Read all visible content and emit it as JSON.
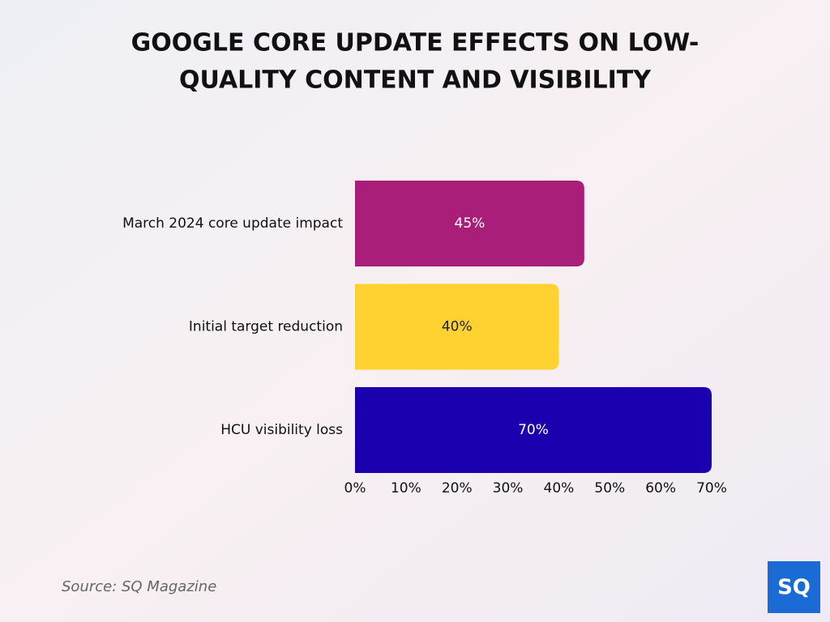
{
  "chart_data": {
    "type": "bar",
    "orientation": "horizontal",
    "title": [
      "GOOGLE CORE UPDATE EFFECTS ON LOW-",
      "QUALITY CONTENT AND VISIBILITY"
    ],
    "categories": [
      "March 2024 core update impact",
      "Initial target reduction",
      "HCU visibility loss"
    ],
    "values": [
      45,
      40,
      70
    ],
    "value_labels": [
      "45%",
      "40%",
      "70%"
    ],
    "colors": [
      "#a91e78",
      "#ffd231",
      "#1b00b0"
    ],
    "xlim": [
      0,
      70
    ],
    "xticks": [
      {
        "value": 0,
        "label": "0%"
      },
      {
        "value": 10,
        "label": "10%"
      },
      {
        "value": 20,
        "label": "20%"
      },
      {
        "value": 30,
        "label": "30%"
      },
      {
        "value": 40,
        "label": "40%"
      },
      {
        "value": 50,
        "label": "50%"
      },
      {
        "value": 60,
        "label": "60%"
      },
      {
        "value": 70,
        "label": "70%"
      }
    ],
    "grid": false
  },
  "source": "Source: SQ Magazine",
  "logo": "SQ"
}
